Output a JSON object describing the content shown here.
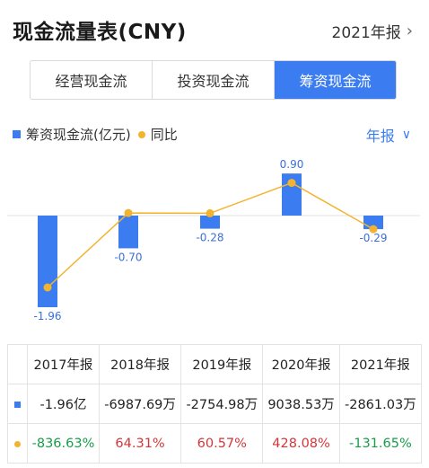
{
  "header": {
    "title": "现金流量表(CNY)",
    "period_label": "2021年报",
    "chevron_icon": "chevron-right-icon"
  },
  "tabs": [
    {
      "label": "经营现金流",
      "active": false
    },
    {
      "label": "投资现金流",
      "active": false
    },
    {
      "label": "筹资现金流",
      "active": true
    }
  ],
  "legend": {
    "bar_label": "筹资现金流(亿元)",
    "line_label": "同比"
  },
  "unit_select": {
    "label": "年报",
    "chevron_icon": "chevron-down-icon"
  },
  "colors": {
    "accent": "#3b7cf0",
    "line": "#f3b32f",
    "positive": "#d2363a",
    "negative": "#1a9c4a"
  },
  "chart_data": {
    "type": "bar",
    "categories": [
      "2017年报",
      "2018年报",
      "2019年报",
      "2020年报",
      "2021年报"
    ],
    "series": [
      {
        "name": "筹资现金流(亿元)",
        "type": "bar",
        "values": [
          -1.96,
          -0.7,
          -0.28,
          0.9,
          -0.29
        ],
        "labels": [
          "-1.96",
          "-0.70",
          "-0.28",
          "0.90",
          "-0.29"
        ]
      },
      {
        "name": "同比",
        "type": "line",
        "values": [
          -836.63,
          64.31,
          60.57,
          428.08,
          -131.65
        ]
      }
    ]
  },
  "table": {
    "headers": [
      "2017年报",
      "2018年报",
      "2019年报",
      "2020年报",
      "2021年报"
    ],
    "rows": [
      {
        "marker": "bar",
        "cells": [
          {
            "text": "-1.96亿",
            "tone": ""
          },
          {
            "text": "-6987.69万",
            "tone": ""
          },
          {
            "text": "-2754.98万",
            "tone": ""
          },
          {
            "text": "9038.53万",
            "tone": ""
          },
          {
            "text": "-2861.03万",
            "tone": ""
          }
        ]
      },
      {
        "marker": "line",
        "cells": [
          {
            "text": "-836.63%",
            "tone": "neg"
          },
          {
            "text": "64.31%",
            "tone": "pos"
          },
          {
            "text": "60.57%",
            "tone": "pos"
          },
          {
            "text": "428.08%",
            "tone": "pos"
          },
          {
            "text": "-131.65%",
            "tone": "neg"
          }
        ]
      }
    ]
  }
}
